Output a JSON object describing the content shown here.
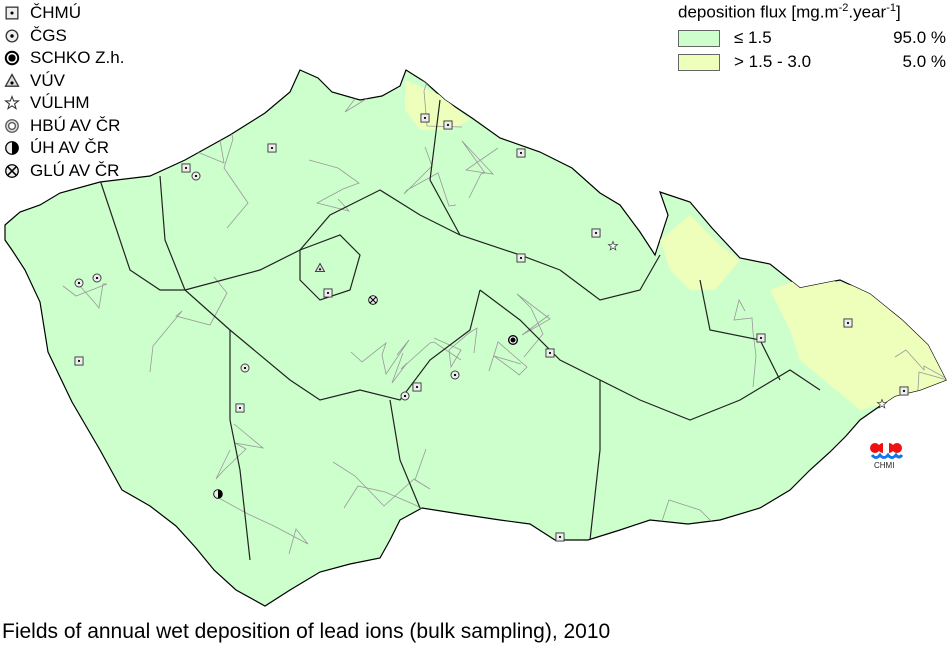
{
  "legend_stations": [
    {
      "label": "ČHMÚ",
      "icon": "square-dot-icon"
    },
    {
      "label": "ČGS",
      "icon": "circle-dot-icon"
    },
    {
      "label": "SCHKO Z.h.",
      "icon": "bullseye-icon"
    },
    {
      "label": "VÚV",
      "icon": "triangle-icon"
    },
    {
      "label": "VÚLHM",
      "icon": "star-icon"
    },
    {
      "label": "HBÚ AV ČR",
      "icon": "double-circle-icon"
    },
    {
      "label": "ÚH AV ČR",
      "icon": "half-circle-icon"
    },
    {
      "label": "GLÚ AV ČR",
      "icon": "circle-x-icon"
    }
  ],
  "legend_flux": {
    "title_prefix": "deposition flux [mg.m",
    "exp1": "-2",
    "mid": ".year",
    "exp2": "-1",
    "suffix": "]",
    "classes": [
      {
        "label": "≤ 1.5",
        "percent": "95.0 %",
        "color": "#ccffcc"
      },
      {
        "label": "> 1.5 - 3.0",
        "percent": "5.0 %",
        "color": "#eeffbb"
      }
    ]
  },
  "logo_text": "CHMI",
  "caption": "Fields of annual wet deposition of lead ions (bulk sampling), 2010",
  "colors": {
    "low": "#ccffcc",
    "mid": "#eeffbb",
    "region_border": "#222222",
    "district_border": "#999999"
  }
}
